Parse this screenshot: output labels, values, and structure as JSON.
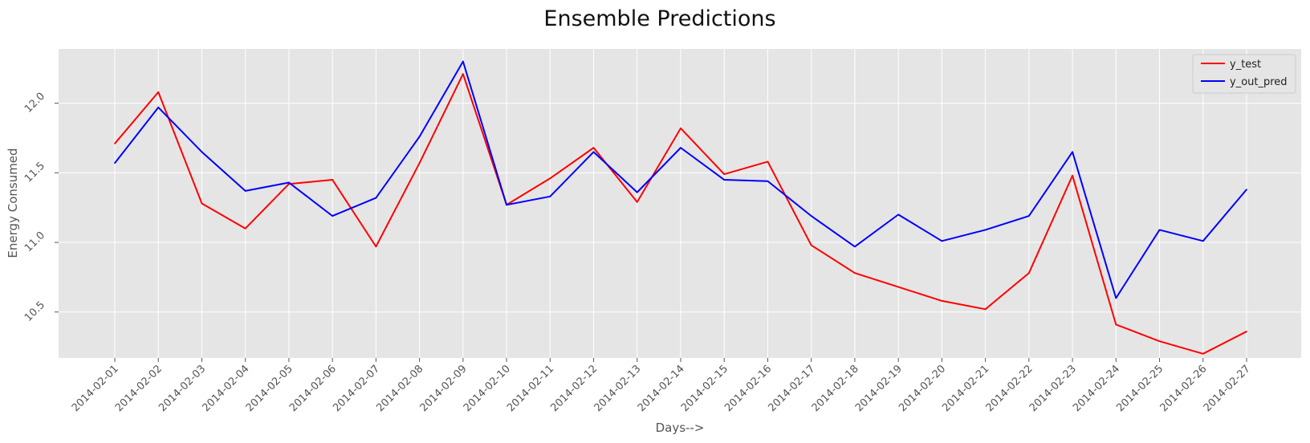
{
  "chart_data": {
    "type": "line",
    "title": "Ensemble Predictions",
    "xlabel": "Days-->",
    "ylabel": "Energy Consumed",
    "x": [
      "2014-02-01",
      "2014-02-02",
      "2014-02-03",
      "2014-02-04",
      "2014-02-05",
      "2014-02-06",
      "2014-02-07",
      "2014-02-08",
      "2014-02-09",
      "2014-02-10",
      "2014-02-11",
      "2014-02-12",
      "2014-02-13",
      "2014-02-14",
      "2014-02-15",
      "2014-02-16",
      "2014-02-17",
      "2014-02-18",
      "2014-02-19",
      "2014-02-20",
      "2014-02-21",
      "2014-02-22",
      "2014-02-23",
      "2014-02-24",
      "2014-02-25",
      "2014-02-26",
      "2014-02-27"
    ],
    "ylim": [
      10.17,
      12.39
    ],
    "yticks": [
      "10.5",
      "11.0",
      "11.5",
      "12.0"
    ],
    "grid": true,
    "legend_position": "top-right",
    "series": [
      {
        "name": "y_test",
        "color": "#ff0000",
        "values": [
          11.71,
          12.08,
          11.28,
          11.1,
          11.42,
          11.45,
          10.97,
          11.57,
          12.21,
          11.27,
          11.46,
          11.68,
          11.29,
          11.82,
          11.49,
          11.58,
          10.98,
          10.78,
          10.68,
          10.58,
          10.52,
          10.78,
          11.48,
          10.41,
          10.29,
          10.2,
          10.36
        ]
      },
      {
        "name": "y_out_pred",
        "color": "#0000ff",
        "values": [
          11.57,
          11.97,
          11.65,
          11.37,
          11.43,
          11.19,
          11.32,
          11.76,
          12.3,
          11.27,
          11.33,
          11.65,
          11.36,
          11.68,
          11.45,
          11.44,
          11.19,
          10.97,
          11.2,
          11.01,
          11.09,
          11.19,
          11.65,
          10.6,
          11.09,
          11.01,
          11.38
        ]
      }
    ]
  }
}
